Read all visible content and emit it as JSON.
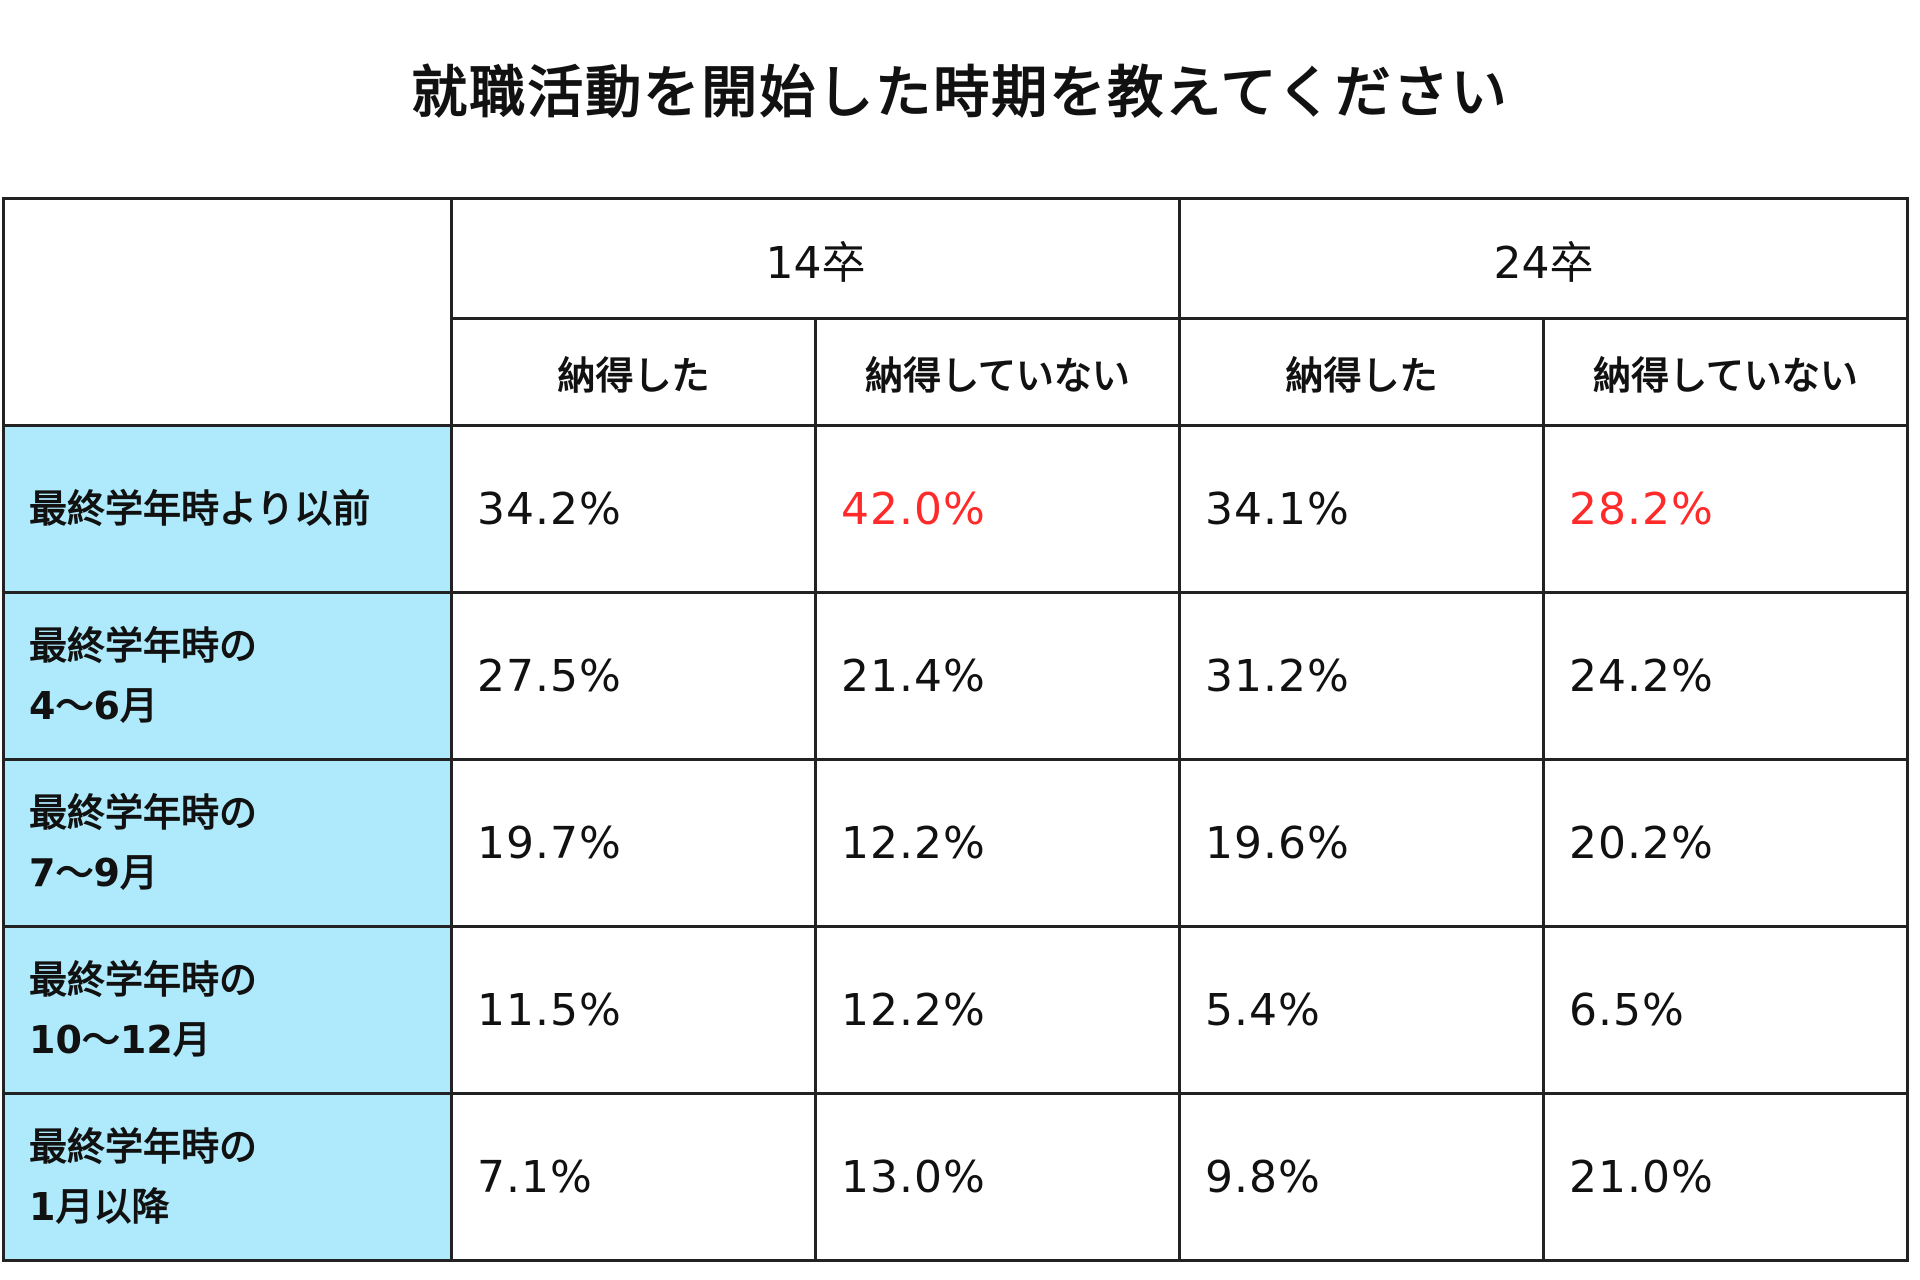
{
  "chart_data": {
    "type": "table",
    "title": "就職活動を開始した時期を教えてください",
    "groups": [
      "14卒",
      "24卒"
    ],
    "subheaders": [
      "納得した",
      "納得していない",
      "納得した",
      "納得していない"
    ],
    "highlight_color": "#ff2a2a",
    "label_bg_color": "#aeeafb",
    "rows": [
      {
        "label_lines": [
          "最終学年時より以前"
        ],
        "cells": [
          {
            "text": "34.2%",
            "value": 34.2,
            "highlight": false
          },
          {
            "text": "42.0%",
            "value": 42.0,
            "highlight": true
          },
          {
            "text": "34.1%",
            "value": 34.1,
            "highlight": false
          },
          {
            "text": "28.2%",
            "value": 28.2,
            "highlight": true
          }
        ]
      },
      {
        "label_lines": [
          "最終学年時の",
          "4～6月"
        ],
        "cells": [
          {
            "text": "27.5%",
            "value": 27.5,
            "highlight": false
          },
          {
            "text": "21.4%",
            "value": 21.4,
            "highlight": false
          },
          {
            "text": "31.2%",
            "value": 31.2,
            "highlight": false
          },
          {
            "text": "24.2%",
            "value": 24.2,
            "highlight": false
          }
        ]
      },
      {
        "label_lines": [
          "最終学年時の",
          "7～9月"
        ],
        "cells": [
          {
            "text": "19.7%",
            "value": 19.7,
            "highlight": false
          },
          {
            "text": "12.2%",
            "value": 12.2,
            "highlight": false
          },
          {
            "text": "19.6%",
            "value": 19.6,
            "highlight": false
          },
          {
            "text": "20.2%",
            "value": 20.2,
            "highlight": false
          }
        ]
      },
      {
        "label_lines": [
          "最終学年時の",
          "10～12月"
        ],
        "cells": [
          {
            "text": "11.5%",
            "value": 11.5,
            "highlight": false
          },
          {
            "text": "12.2%",
            "value": 12.2,
            "highlight": false
          },
          {
            "text": "5.4%",
            "value": 5.4,
            "highlight": false
          },
          {
            "text": "6.5%",
            "value": 6.5,
            "highlight": false
          }
        ]
      },
      {
        "label_lines": [
          "最終学年時の",
          "1月以降"
        ],
        "cells": [
          {
            "text": "7.1%",
            "value": 7.1,
            "highlight": false
          },
          {
            "text": "13.0%",
            "value": 13.0,
            "highlight": false
          },
          {
            "text": "9.8%",
            "value": 9.8,
            "highlight": false
          },
          {
            "text": "21.0%",
            "value": 21.0,
            "highlight": false
          }
        ]
      }
    ]
  }
}
